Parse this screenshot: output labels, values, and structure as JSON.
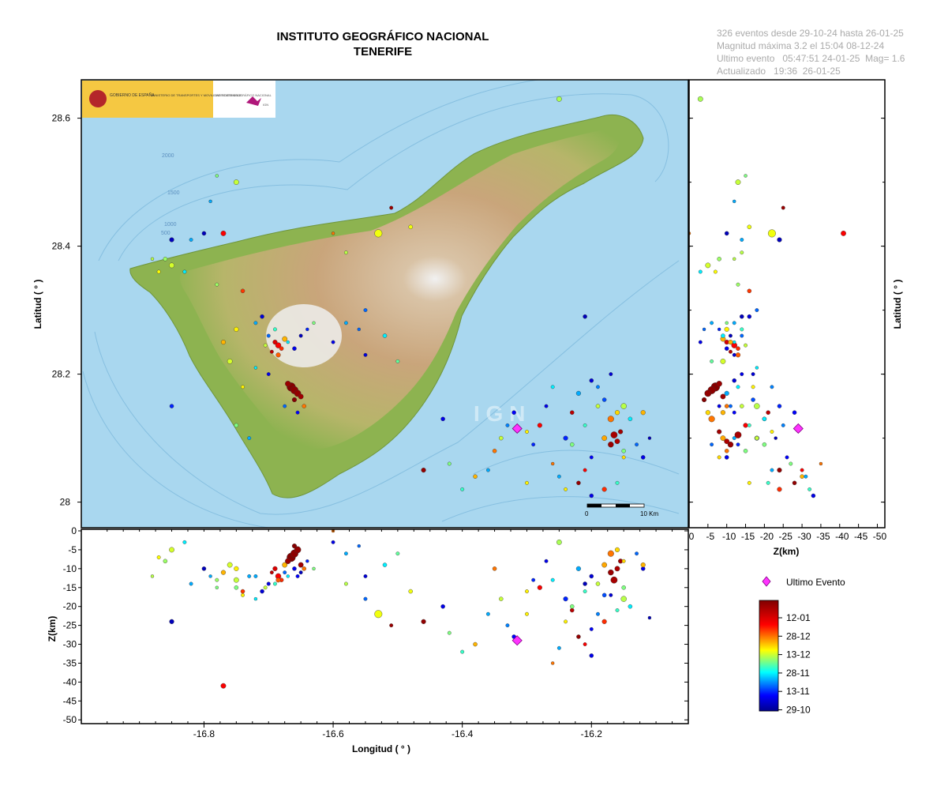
{
  "header": {
    "title": "INSTITUTO GEOGRÁFICO NACIONAL",
    "subtitle": "TENERIFE"
  },
  "info": {
    "line1": "326 eventos desde 29-10-24 hasta 26-01-25",
    "line2": "Magnitud máxima 3.2 el 15:04 08-12-24",
    "line3": "Ultimo evento   05:47:51 24-01-25  Mag= 1.6",
    "line4": "Actualizado   19:36  26-01-25"
  },
  "logo": {
    "gov": "GOBIERNO DE ESPAÑA",
    "ministry": "MINISTERIO DE TRANSPORTES Y MOVILIDAD SOSTENIBLE",
    "ign": "INSTITUTO GEOGRÁFICO NACIONAL",
    "ign_small": "IGN"
  },
  "watermark": "I G N",
  "map_labels": {
    "scale_zero": "0",
    "scale_end": "10 Km",
    "contours": [
      "2000",
      "1500",
      "1000",
      "500"
    ]
  },
  "colors": {
    "sea": "#a9d7ef",
    "sea_deep": "#8fc6e6",
    "land_low": "#8db350",
    "land_mid": "#d2b48a",
    "land_high": "#b98f66",
    "summit": "#f1f1f1",
    "latest_event": "#ff33ff"
  },
  "legend": {
    "latest_event": "Ultimo Evento",
    "colorbar_ticks": [
      "12-01",
      "28-12",
      "13-12",
      "28-11",
      "13-11",
      "29-10"
    ]
  },
  "chart_data": [
    {
      "type": "scatter",
      "name": "map",
      "ylabel": "Latitud ( ° )",
      "xlim": [
        -16.99,
        -16.05
      ],
      "ylim": [
        27.96,
        28.66
      ],
      "yticks": [
        28,
        28.2,
        28.4,
        28.6
      ],
      "ytick_labels": [
        "28",
        "28.2",
        "28.4",
        "28.6"
      ],
      "latest_event": {
        "lon": -16.315,
        "lat": 28.115,
        "depth": 29
      }
    },
    {
      "type": "scatter",
      "name": "lat-depth",
      "xlabel": "Z(km)",
      "ylabel": "Latitud ( ° )",
      "xlim": [
        0,
        -52
      ],
      "xticks": [
        0,
        -5,
        -10,
        -15,
        -20,
        -25,
        -30,
        -35,
        -40,
        -45,
        -50
      ],
      "xtick_labels": [
        "0",
        "-5",
        "-10",
        "-15",
        "-20",
        "-25",
        "-30",
        "-35",
        "-40",
        "-45",
        "-50"
      ]
    },
    {
      "type": "scatter",
      "name": "lon-depth",
      "xlabel": "Longitud ( ° )",
      "ylabel": "Z(km)",
      "ylim": [
        0,
        -51
      ],
      "xticks": [
        -16.8,
        -16.6,
        -16.4,
        -16.2
      ],
      "xtick_labels": [
        "-16.8",
        "-16.6",
        "-16.4",
        "-16.2"
      ],
      "yticks": [
        0,
        -5,
        -10,
        -15,
        -20,
        -25,
        -30,
        -35,
        -40,
        -45,
        -50
      ],
      "ytick_labels": [
        "0",
        "-5",
        "-10",
        "-15",
        "-20",
        "-25",
        "-30",
        "-35",
        "-40",
        "-45",
        "-50"
      ]
    },
    {
      "type": "scatter",
      "name": "events",
      "date_range": [
        "29-10-24",
        "26-01-25"
      ],
      "note_fields": [
        "lon",
        "lat",
        "depth_km",
        "days_since_29-10",
        "mag"
      ],
      "events": [
        [
          -16.685,
          28.245,
          12,
          70,
          1.6
        ],
        [
          -16.69,
          28.25,
          10,
          75,
          1.4
        ],
        [
          -16.68,
          28.24,
          13,
          66,
          1.3
        ],
        [
          -16.695,
          28.235,
          11,
          80,
          1.2
        ],
        [
          -16.675,
          28.255,
          9,
          55,
          1.5
        ],
        [
          -16.7,
          28.26,
          14,
          20,
          1.2
        ],
        [
          -16.67,
          28.25,
          12,
          30,
          1.1
        ],
        [
          -16.66,
          28.24,
          10,
          10,
          1.3
        ],
        [
          -16.705,
          28.245,
          15,
          45,
          1.2
        ],
        [
          -16.685,
          28.23,
          13,
          62,
          1.4
        ],
        [
          -16.65,
          28.26,
          11,
          5,
          1.2
        ],
        [
          -16.64,
          28.27,
          8,
          15,
          1.1
        ],
        [
          -16.72,
          28.28,
          12,
          25,
          1.2
        ],
        [
          -16.71,
          28.29,
          16,
          8,
          1.3
        ],
        [
          -16.63,
          28.28,
          10,
          40,
          1.1
        ],
        [
          -16.69,
          28.27,
          14,
          35,
          1.2
        ],
        [
          -16.665,
          28.18,
          7,
          88,
          2.2
        ],
        [
          -16.66,
          28.175,
          6,
          87,
          2.0
        ],
        [
          -16.655,
          28.17,
          5,
          86,
          1.8
        ],
        [
          -16.67,
          28.185,
          8,
          85,
          1.6
        ],
        [
          -16.65,
          28.165,
          9,
          84,
          1.5
        ],
        [
          -16.66,
          28.16,
          4,
          88,
          1.4
        ],
        [
          -16.645,
          28.15,
          10,
          60,
          1.3
        ],
        [
          -16.675,
          28.15,
          11,
          20,
          1.2
        ],
        [
          -16.655,
          28.14,
          12,
          12,
          1.2
        ],
        [
          -16.7,
          28.2,
          14,
          10,
          1.2
        ],
        [
          -16.72,
          28.21,
          18,
          30,
          1.1
        ],
        [
          -16.74,
          28.18,
          17,
          50,
          1.2
        ],
        [
          -16.75,
          28.12,
          15,
          40,
          1.3
        ],
        [
          -16.73,
          28.1,
          12,
          25,
          1.2
        ],
        [
          -16.76,
          28.22,
          9,
          46,
          1.5
        ],
        [
          -16.75,
          28.27,
          10,
          50,
          1.4
        ],
        [
          -16.77,
          28.25,
          11,
          55,
          1.4
        ],
        [
          -16.74,
          28.33,
          16,
          65,
          1.3
        ],
        [
          -16.78,
          28.34,
          13,
          42,
          1.2
        ],
        [
          -16.86,
          28.38,
          8,
          42,
          1.3
        ],
        [
          -16.85,
          28.37,
          5,
          46,
          1.5
        ],
        [
          -16.87,
          28.36,
          7,
          49,
          1.2
        ],
        [
          -16.88,
          28.38,
          12,
          44,
          1.1
        ],
        [
          -16.83,
          28.36,
          3,
          30,
          1.2
        ],
        [
          -16.85,
          28.15,
          24,
          15,
          1.3
        ],
        [
          -16.77,
          28.42,
          41,
          70,
          1.5
        ],
        [
          -16.8,
          28.42,
          10,
          5,
          1.3
        ],
        [
          -16.82,
          28.41,
          14,
          25,
          1.2
        ],
        [
          -16.79,
          28.47,
          12,
          25,
          1.1
        ],
        [
          -16.78,
          28.51,
          15,
          40,
          1.1
        ],
        [
          -16.75,
          28.5,
          13,
          45,
          1.5
        ],
        [
          -16.85,
          28.41,
          24,
          5,
          1.4
        ],
        [
          -16.6,
          28.25,
          3,
          10,
          1.2
        ],
        [
          -16.58,
          28.28,
          6,
          25,
          1.2
        ],
        [
          -16.56,
          28.27,
          4,
          20,
          1.1
        ],
        [
          -16.55,
          28.23,
          12,
          8,
          1.2
        ],
        [
          -16.52,
          28.26,
          9,
          30,
          1.3
        ],
        [
          -16.5,
          28.22,
          6,
          38,
          1.2
        ],
        [
          -16.53,
          28.42,
          22,
          48,
          2.0
        ],
        [
          -16.48,
          28.43,
          16,
          48,
          1.3
        ],
        [
          -16.51,
          28.46,
          25,
          85,
          1.2
        ],
        [
          -16.58,
          28.39,
          14,
          44,
          1.2
        ],
        [
          -16.6,
          28.42,
          0,
          60,
          1.1
        ],
        [
          -16.55,
          28.3,
          18,
          20,
          1.2
        ],
        [
          -16.46,
          28.05,
          24,
          86,
          1.4
        ],
        [
          -16.43,
          28.13,
          20,
          10,
          1.3
        ],
        [
          -16.42,
          28.06,
          27,
          40,
          1.2
        ],
        [
          -16.4,
          28.02,
          32,
          35,
          1.2
        ],
        [
          -16.38,
          28.04,
          30,
          55,
          1.3
        ],
        [
          -16.35,
          28.08,
          10,
          60,
          1.3
        ],
        [
          -16.33,
          28.12,
          25,
          22,
          1.2
        ],
        [
          -16.32,
          28.14,
          28,
          12,
          1.3
        ],
        [
          -16.3,
          28.11,
          22,
          50,
          1.2
        ],
        [
          -16.28,
          28.12,
          15,
          70,
          1.4
        ],
        [
          -16.27,
          28.15,
          8,
          10,
          1.2
        ],
        [
          -16.26,
          28.18,
          13,
          30,
          1.2
        ],
        [
          -16.24,
          28.1,
          18,
          15,
          1.4
        ],
        [
          -16.23,
          28.14,
          21,
          80,
          1.3
        ],
        [
          -16.22,
          28.17,
          10,
          25,
          1.4
        ],
        [
          -16.21,
          28.12,
          16,
          35,
          1.2
        ],
        [
          -16.2,
          28.19,
          12,
          8,
          1.3
        ],
        [
          -16.19,
          28.15,
          14,
          45,
          1.3
        ],
        [
          -16.18,
          28.1,
          9,
          56,
          1.5
        ],
        [
          -16.17,
          28.09,
          11,
          85,
          1.6
        ],
        [
          -16.165,
          28.105,
          13,
          83,
          1.8
        ],
        [
          -16.16,
          28.095,
          10,
          82,
          1.5
        ],
        [
          -16.155,
          28.11,
          8,
          84,
          1.4
        ],
        [
          -16.15,
          28.08,
          15,
          40,
          1.3
        ],
        [
          -16.17,
          28.13,
          6,
          60,
          1.7
        ],
        [
          -16.16,
          28.14,
          5,
          52,
          1.4
        ],
        [
          -16.15,
          28.15,
          18,
          44,
          1.6
        ],
        [
          -16.14,
          28.13,
          20,
          30,
          1.3
        ],
        [
          -16.18,
          28.16,
          17,
          18,
          1.3
        ],
        [
          -16.19,
          28.18,
          22,
          22,
          1.2
        ],
        [
          -16.2,
          28.07,
          26,
          12,
          1.2
        ],
        [
          -16.21,
          28.05,
          30,
          70,
          1.2
        ],
        [
          -16.22,
          28.03,
          28,
          86,
          1.3
        ],
        [
          -16.24,
          28.02,
          24,
          50,
          1.2
        ],
        [
          -16.25,
          28.04,
          31,
          25,
          1.2
        ],
        [
          -16.26,
          28.06,
          35,
          60,
          1.1
        ],
        [
          -16.23,
          28.09,
          20,
          40,
          1.3
        ],
        [
          -16.2,
          28.01,
          33,
          10,
          1.3
        ],
        [
          -16.18,
          28.02,
          24,
          66,
          1.4
        ],
        [
          -16.16,
          28.03,
          21,
          35,
          1.2
        ],
        [
          -16.15,
          28.07,
          8,
          52,
          1.2
        ],
        [
          -16.13,
          28.09,
          6,
          20,
          1.2
        ],
        [
          -16.12,
          28.07,
          10,
          10,
          1.3
        ],
        [
          -16.11,
          28.1,
          23,
          5,
          1.1
        ],
        [
          -16.12,
          28.14,
          9,
          55,
          1.4
        ],
        [
          -16.17,
          28.2,
          17,
          8,
          1.2
        ],
        [
          -16.21,
          28.29,
          14,
          5,
          1.3
        ],
        [
          -16.25,
          28.63,
          3,
          43,
          1.5
        ],
        [
          -16.29,
          28.09,
          13,
          15,
          1.2
        ],
        [
          -16.34,
          28.1,
          18,
          45,
          1.3
        ],
        [
          -16.36,
          28.05,
          22,
          25,
          1.2
        ],
        [
          -16.3,
          28.03,
          16,
          50,
          1.2
        ]
      ]
    }
  ]
}
